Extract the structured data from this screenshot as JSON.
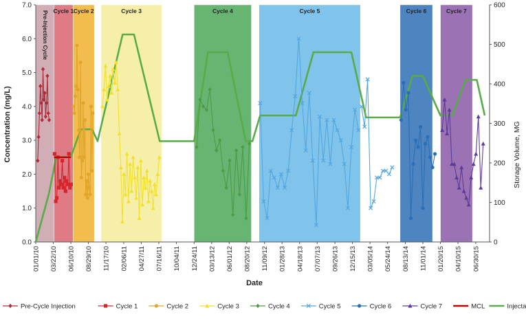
{
  "chart_data": {
    "type": "line",
    "xlabel": "Date",
    "ylabel": "Concentration (mg/L)",
    "y2label": "Storage Volume, MG",
    "ylim": [
      0,
      7
    ],
    "y2lim": [
      0,
      600
    ],
    "yticks": [
      "0.0",
      "1.0",
      "2.0",
      "3.0",
      "4.0",
      "5.0",
      "6.0",
      "7.0"
    ],
    "y2ticks": [
      "0",
      "100",
      "200",
      "300",
      "400",
      "500",
      "600"
    ],
    "xticks": [
      "01/01/10",
      "03/22/10",
      "06/10/10",
      "08/29/10",
      "11/17/10",
      "02/06/11",
      "04/27/11",
      "07/16/11",
      "10/04/11",
      "12/24/11",
      "03/13/12",
      "06/01/12",
      "08/20/12",
      "11/09/12",
      "01/28/13",
      "04/18/13",
      "07/07/13",
      "09/26/13",
      "12/15/13",
      "03/05/14",
      "05/24/14",
      "08/13/14",
      "11/01/14",
      "01/20/15",
      "04/10/15",
      "06/30/15"
    ],
    "grid": false,
    "legend_position": "bottom",
    "cycle_bands": [
      {
        "label": "Pre-Injection Cycle",
        "start": "2010-01-01",
        "end": "2010-03-25",
        "color": "#c9a0a8"
      },
      {
        "label": "Cycle 1",
        "start": "2010-03-25",
        "end": "2010-06-20",
        "color": "#d9646e"
      },
      {
        "label": "Cycle 2",
        "start": "2010-06-20",
        "end": "2010-09-25",
        "color": "#f0b030"
      },
      {
        "label": "Cycle 3",
        "start": "2010-10-25",
        "end": "2011-07-30",
        "color": "#f5ec9a"
      },
      {
        "label": "Cycle 4",
        "start": "2011-12-24",
        "end": "2012-09-10",
        "color": "#4ea85a"
      },
      {
        "label": "Cycle 5",
        "start": "2012-10-15",
        "end": "2014-01-20",
        "color": "#6ab8e8"
      },
      {
        "label": "Cycle 6",
        "start": "2014-07-20",
        "end": "2014-12-15",
        "color": "#2f6fb5"
      },
      {
        "label": "Cycle 7",
        "start": "2015-01-20",
        "end": "2015-06-15",
        "color": "#8a5aa8"
      }
    ],
    "series": [
      {
        "name": "Pre-Cycle Injection",
        "color": "#b22a35",
        "marker": "diamond",
        "x": [
          "2010-01-10",
          "2010-01-14",
          "2010-01-18",
          "2010-01-22",
          "2010-01-26",
          "2010-01-30",
          "2010-02-03",
          "2010-02-07",
          "2010-02-11",
          "2010-02-15",
          "2010-02-19",
          "2010-02-23",
          "2010-02-27",
          "2010-03-03"
        ],
        "y": [
          2.4,
          3.1,
          3.8,
          4.6,
          4.1,
          3.6,
          5.1,
          4.2,
          4.4,
          3.7,
          4.1,
          4.9,
          3.8,
          3.6
        ]
      },
      {
        "name": "Cycle 1",
        "color": "#d8252d",
        "marker": "square",
        "x": [
          "2010-03-28",
          "2010-04-02",
          "2010-04-07",
          "2010-04-12",
          "2010-04-17",
          "2010-04-22",
          "2010-04-27",
          "2010-05-02",
          "2010-05-07",
          "2010-05-12",
          "2010-05-17",
          "2010-05-22",
          "2010-05-27",
          "2010-06-01",
          "2010-06-06",
          "2010-06-11"
        ],
        "y": [
          2.6,
          1.2,
          1.3,
          2.5,
          1.6,
          1.8,
          1.7,
          2.4,
          1.6,
          1.9,
          1.5,
          1.8,
          1.7,
          2.6,
          1.6,
          1.7
        ]
      },
      {
        "name": "Cycle 2",
        "color": "#e0a52a",
        "marker": "circle",
        "x": [
          "2010-06-22",
          "2010-06-26",
          "2010-06-30",
          "2010-07-04",
          "2010-07-08",
          "2010-07-12",
          "2010-07-16",
          "2010-07-20",
          "2010-07-24",
          "2010-07-28",
          "2010-08-01",
          "2010-08-05",
          "2010-08-09",
          "2010-08-13",
          "2010-08-17",
          "2010-08-21",
          "2010-08-25",
          "2010-08-29",
          "2010-09-02",
          "2010-09-06",
          "2010-09-10",
          "2010-09-14",
          "2010-09-18"
        ],
        "y": [
          4.0,
          3.8,
          4.3,
          4.6,
          5.8,
          4.5,
          3.3,
          2.5,
          5.3,
          1.9,
          2.4,
          4.1,
          2.5,
          3.6,
          1.4,
          1.8,
          1.3,
          2.0,
          1.6,
          1.4,
          4.0,
          2.1,
          3.8
        ]
      },
      {
        "name": "Cycle 3",
        "color": "#f2e12a",
        "marker": "triangle",
        "x": [
          "2010-11-01",
          "2010-11-08",
          "2010-11-15",
          "2010-11-22",
          "2010-11-29",
          "2010-12-06",
          "2010-12-13",
          "2010-12-20",
          "2010-12-27",
          "2011-01-03",
          "2011-01-10",
          "2011-01-17",
          "2011-01-24",
          "2011-01-31",
          "2011-02-07",
          "2011-02-14",
          "2011-02-21",
          "2011-02-28",
          "2011-03-07",
          "2011-03-14",
          "2011-03-21",
          "2011-03-28",
          "2011-04-04",
          "2011-04-11",
          "2011-04-18",
          "2011-04-25",
          "2011-05-02",
          "2011-05-09",
          "2011-05-16",
          "2011-05-23",
          "2011-05-30",
          "2011-06-06",
          "2011-06-13",
          "2011-06-20",
          "2011-06-27",
          "2011-07-04",
          "2011-07-11",
          "2011-07-18"
        ],
        "y": [
          4.0,
          4.5,
          5.2,
          4.2,
          4.6,
          4.9,
          4.4,
          5.1,
          4.7,
          5.3,
          4.5,
          3.2,
          2.2,
          0.6,
          2.0,
          1.4,
          2.6,
          1.2,
          2.3,
          1.5,
          2.5,
          1.9,
          1.3,
          2.2,
          0.7,
          2.4,
          1.1,
          1.9,
          1.6,
          2.1,
          1.2,
          1.8,
          1.5,
          1.0,
          1.7,
          1.4,
          2.0,
          2.5
        ]
      },
      {
        "name": "Cycle 4",
        "color": "#4f9a45",
        "marker": "diamond",
        "x": [
          "2012-01-05",
          "2012-01-20",
          "2012-02-04",
          "2012-02-19",
          "2012-03-05",
          "2012-03-20",
          "2012-04-04",
          "2012-04-19",
          "2012-05-04",
          "2012-05-19",
          "2012-06-03",
          "2012-06-18",
          "2012-07-03",
          "2012-07-18",
          "2012-08-02",
          "2012-08-17",
          "2012-09-01"
        ],
        "y": [
          2.8,
          4.2,
          4.0,
          3.9,
          4.5,
          3.3,
          2.7,
          3.0,
          2.1,
          1.6,
          2.4,
          0.8,
          2.7,
          1.4,
          2.8,
          0.7,
          2.9
        ]
      },
      {
        "name": "Cycle 5",
        "color": "#52a7df",
        "marker": "x",
        "x": [
          "2012-10-20",
          "2012-11-05",
          "2012-11-21",
          "2012-12-07",
          "2012-12-23",
          "2013-01-08",
          "2013-01-24",
          "2013-02-09",
          "2013-02-25",
          "2013-03-13",
          "2013-03-29",
          "2013-04-14",
          "2013-04-30",
          "2013-05-16",
          "2013-06-01",
          "2013-06-17",
          "2013-07-03",
          "2013-07-19",
          "2013-08-04",
          "2013-08-20",
          "2013-09-05",
          "2013-09-21",
          "2013-10-07",
          "2013-10-23",
          "2013-11-08",
          "2013-11-24",
          "2013-12-10",
          "2013-12-26",
          "2014-01-11"
        ],
        "y": [
          4.1,
          1.2,
          0.7,
          2.1,
          1.9,
          1.6,
          2.0,
          1.6,
          2.1,
          3.3,
          4.3,
          6.0,
          4.1,
          2.7,
          4.4,
          2.4,
          0.5,
          3.7,
          2.4,
          3.6,
          2.3,
          3.6,
          3.3,
          3.0,
          2.3,
          1.0,
          2.8,
          3.9,
          3.3
        ]
      },
      {
        "name": "Cycle 5",
        "color": "#52a7df",
        "marker": "x",
        "x": [
          "2014-01-25",
          "2014-02-08",
          "2014-02-22",
          "2014-03-08",
          "2014-03-22",
          "2014-04-05",
          "2014-04-19",
          "2014-05-03",
          "2014-05-17",
          "2014-05-31",
          "2014-06-14"
        ],
        "y": [
          4.0,
          3.4,
          4.8,
          1.0,
          1.2,
          1.9,
          1.9,
          2.1,
          2.1,
          2.0,
          2.2
        ]
      },
      {
        "name": "Cycle 6",
        "color": "#2a6fb5",
        "marker": "circle",
        "x": [
          "2014-07-25",
          "2014-08-05",
          "2014-08-16",
          "2014-08-27",
          "2014-09-07",
          "2014-09-18",
          "2014-09-29",
          "2014-10-10",
          "2014-10-21",
          "2014-11-01",
          "2014-11-12",
          "2014-11-23",
          "2014-12-04",
          "2014-12-15",
          "2014-12-26"
        ],
        "y": [
          3.6,
          4.7,
          3.9,
          4.4,
          0.7,
          2.3,
          3.0,
          2.8,
          3.4,
          1.0,
          2.9,
          3.1,
          2.5,
          2.2,
          2.6
        ]
      },
      {
        "name": "Cycle 7",
        "color": "#5c3a98",
        "marker": "triangle",
        "x": [
          "2015-01-28",
          "2015-02-08",
          "2015-02-19",
          "2015-03-02",
          "2015-03-13",
          "2015-03-24",
          "2015-04-04",
          "2015-04-15",
          "2015-04-26",
          "2015-05-07",
          "2015-05-18",
          "2015-05-29",
          "2015-06-09",
          "2015-06-20",
          "2015-07-01",
          "2015-07-12",
          "2015-07-23",
          "2015-08-03"
        ],
        "y": [
          3.3,
          4.2,
          3.2,
          3.9,
          2.3,
          2.3,
          1.9,
          1.6,
          2.2,
          1.5,
          1.3,
          1.1,
          1.9,
          2.3,
          2.6,
          3.7,
          1.6,
          2.9
        ]
      },
      {
        "name": "MCL",
        "color": "#c00000",
        "marker": "none",
        "x": [
          "2010-03-25",
          "2010-06-10"
        ],
        "y": [
          2.5,
          2.5
        ]
      }
    ],
    "injectate": {
      "name": "Injectate Remaining in Aquifer",
      "color": "#58ab47",
      "x": [
        "2010-01-01",
        "2010-03-01",
        "2010-04-05",
        "2010-06-10",
        "2010-07-25",
        "2010-09-15",
        "2010-10-10",
        "2011-02-01",
        "2011-03-25",
        "2011-07-20",
        "2011-12-24",
        "2012-02-25",
        "2012-05-25",
        "2012-08-15",
        "2012-09-15",
        "2012-10-20",
        "2013-04-01",
        "2013-06-20",
        "2013-12-10",
        "2014-02-15",
        "2014-07-20",
        "2014-09-15",
        "2014-11-01",
        "2015-01-20",
        "2015-03-15",
        "2015-05-15",
        "2015-07-05",
        "2015-08-10"
      ],
      "y2": [
        0,
        120,
        215,
        215,
        285,
        285,
        255,
        525,
        525,
        255,
        255,
        480,
        480,
        255,
        255,
        320,
        320,
        480,
        480,
        315,
        315,
        420,
        420,
        320,
        320,
        410,
        410,
        320
      ]
    }
  }
}
